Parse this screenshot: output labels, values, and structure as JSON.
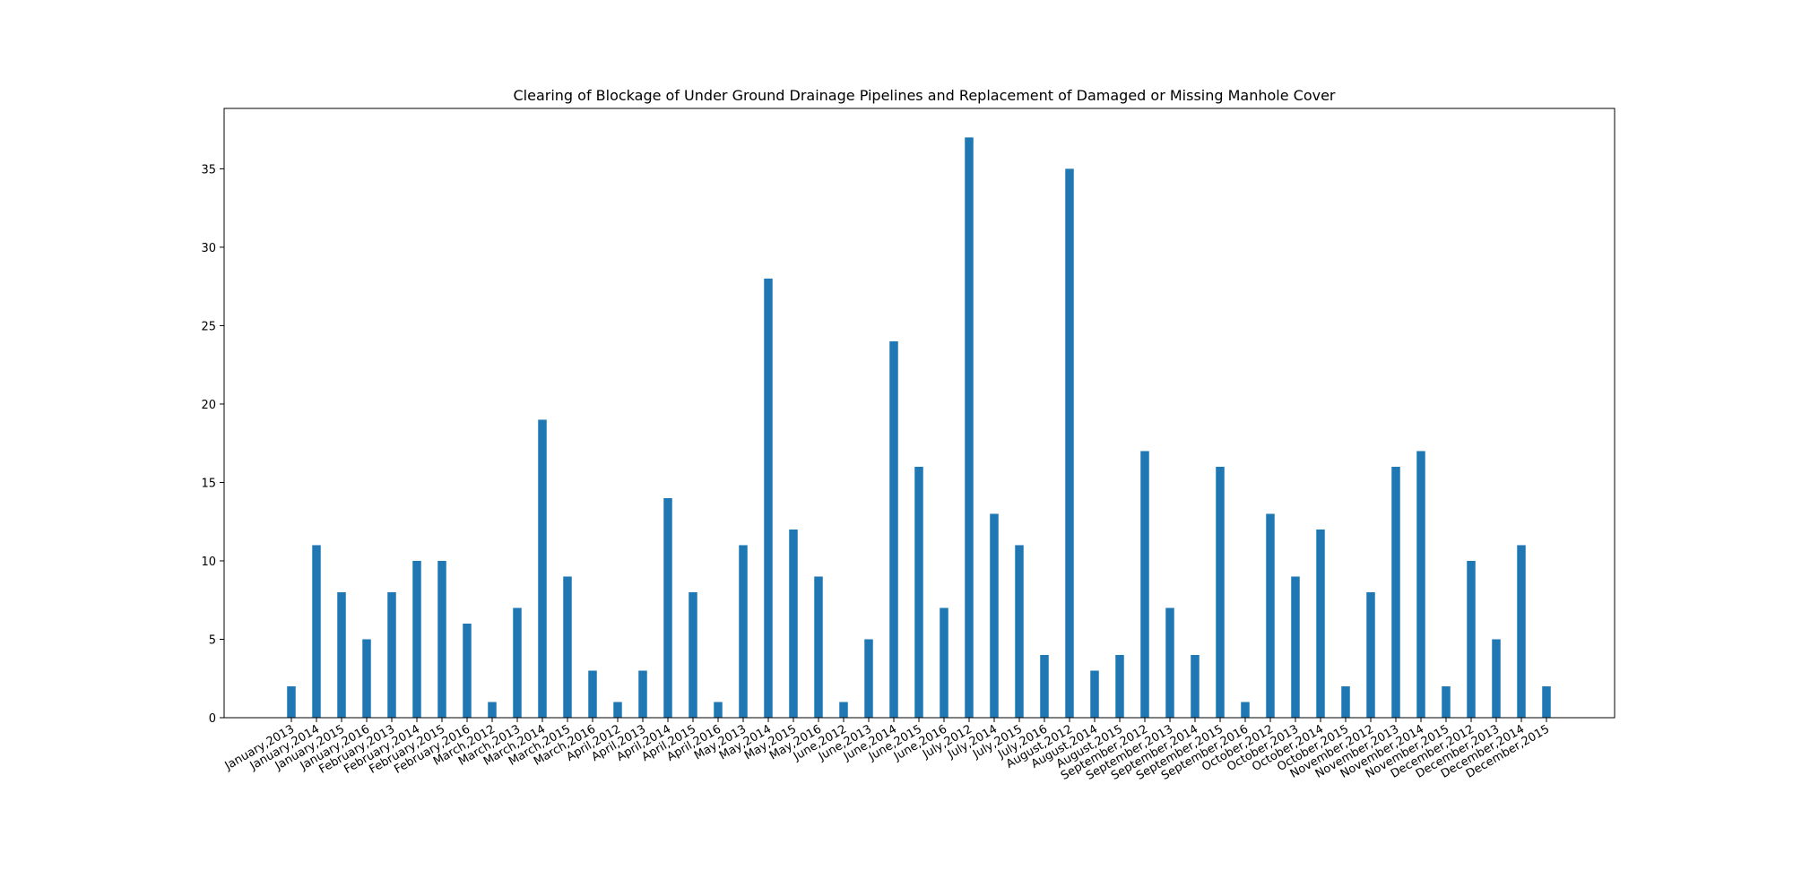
{
  "chart_data": {
    "type": "bar",
    "title": "Clearing of Blockage of Under Ground Drainage Pipelines and Replacement of Damaged or Missing Manhole Cover",
    "xlabel": "",
    "ylabel": "",
    "ylim": [
      0,
      38.85
    ],
    "yticks": [
      0,
      5,
      10,
      15,
      20,
      25,
      30,
      35
    ],
    "grid": false,
    "bar_color": "#1f77b4",
    "categories": [
      "January,2013",
      "January,2014",
      "January,2015",
      "January,2016",
      "February,2013",
      "February,2014",
      "February,2015",
      "February,2016",
      "March,2012",
      "March,2013",
      "March,2014",
      "March,2015",
      "March,2016",
      "April,2012",
      "April,2013",
      "April,2014",
      "April,2015",
      "April,2016",
      "May,2013",
      "May,2014",
      "May,2015",
      "May,2016",
      "June,2012",
      "June,2013",
      "June,2014",
      "June,2015",
      "June,2016",
      "July,2012",
      "July,2014",
      "July,2015",
      "July,2016",
      "August,2012",
      "August,2014",
      "August,2015",
      "September,2012",
      "September,2013",
      "September,2014",
      "September,2015",
      "September,2016",
      "October,2012",
      "October,2013",
      "October,2014",
      "October,2015",
      "November,2012",
      "November,2013",
      "November,2014",
      "November,2015",
      "December,2012",
      "December,2013",
      "December,2014",
      "December,2015"
    ],
    "values": [
      2,
      11,
      8,
      5,
      8,
      10,
      10,
      6,
      1,
      7,
      19,
      9,
      3,
      1,
      3,
      14,
      8,
      1,
      11,
      28,
      12,
      9,
      1,
      5,
      24,
      16,
      7,
      37,
      13,
      11,
      4,
      35,
      3,
      4,
      17,
      7,
      4,
      16,
      1,
      13,
      9,
      12,
      2,
      8,
      16,
      17,
      2,
      10,
      5,
      11,
      2
    ]
  }
}
